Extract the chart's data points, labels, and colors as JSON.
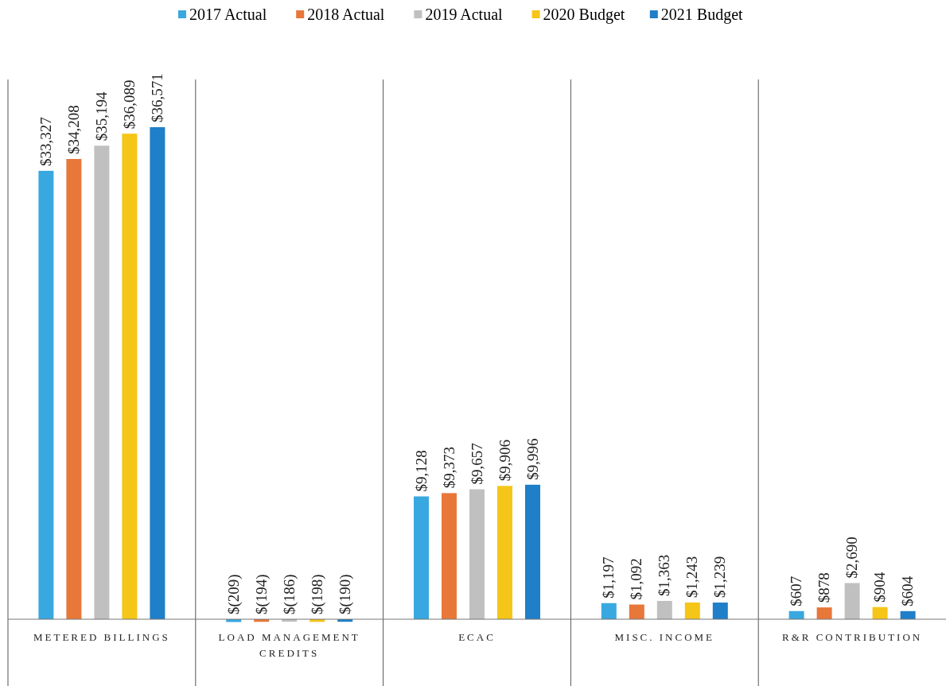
{
  "chart_data": {
    "type": "bar",
    "categories": [
      "METERED BILLINGS",
      "LOAD MANAGEMENT CREDITS",
      "ECAC",
      "MISC. INCOME",
      "R&R CONTRIBUTION"
    ],
    "series": [
      {
        "name": "2017 Actual",
        "color": "#3aa8e0",
        "values": [
          33327,
          -209,
          9128,
          1197,
          607
        ],
        "value_labels": [
          "$33,327",
          "$(209)",
          "$9,128",
          "$1,197",
          "$607"
        ]
      },
      {
        "name": "2018 Actual",
        "color": "#e8773a",
        "values": [
          34208,
          -194,
          9373,
          1092,
          878
        ],
        "value_labels": [
          "$34,208",
          "$(194)",
          "$9,373",
          "$1,092",
          "$878"
        ]
      },
      {
        "name": "2019 Actual",
        "color": "#c0c0c0",
        "values": [
          35194,
          -186,
          9657,
          1363,
          2690
        ],
        "value_labels": [
          "$35,194",
          "$(186)",
          "$9,657",
          "$1,363",
          "$2,690"
        ]
      },
      {
        "name": "2020 Budget",
        "color": "#f5c518",
        "values": [
          36089,
          -198,
          9906,
          1243,
          904
        ],
        "value_labels": [
          "$36,089",
          "$(198)",
          "$9,906",
          "$1,243",
          "$904"
        ]
      },
      {
        "name": "2021 Budget",
        "color": "#1f7fc8",
        "values": [
          36571,
          -190,
          9996,
          1239,
          604
        ],
        "value_labels": [
          "$36,571",
          "$(190)",
          "$9,996",
          "$1,239",
          "$604"
        ]
      }
    ],
    "legend": "top"
  }
}
